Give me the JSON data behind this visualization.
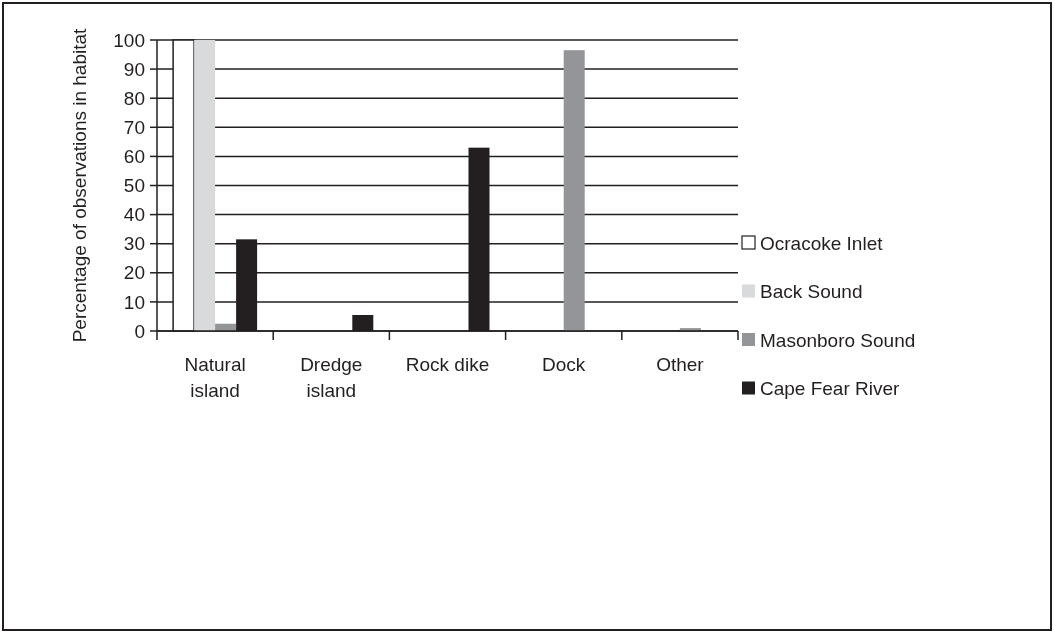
{
  "chart_data": {
    "type": "bar",
    "ylabel": "Percentage of observations in habitat",
    "categories": [
      "Natural island",
      "Dredge island",
      "Rock dike",
      "Dock",
      "Other"
    ],
    "series": [
      {
        "name": "Ocracoke Inlet",
        "color": "#ffffff",
        "values": [
          100,
          0,
          0,
          0,
          0
        ]
      },
      {
        "name": "Back Sound",
        "color": "#d9dadb",
        "values": [
          100,
          0,
          0,
          0,
          0
        ]
      },
      {
        "name": "Masonboro Sound",
        "color": "#939598",
        "values": [
          2.5,
          0,
          0,
          96.5,
          1
        ]
      },
      {
        "name": "Cape Fear River",
        "color": "#231f20",
        "values": [
          31.5,
          5.5,
          63,
          0,
          0
        ]
      }
    ],
    "ylim": [
      0,
      100
    ],
    "yticks": [
      0,
      10,
      20,
      30,
      40,
      50,
      60,
      70,
      80,
      90,
      100
    ],
    "grid": "y",
    "legend": "right"
  }
}
